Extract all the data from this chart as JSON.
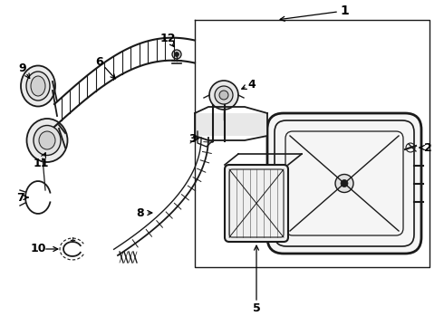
{
  "bg_color": "#ffffff",
  "lc": "#1a1a1a",
  "label_color": "#000000",
  "figsize": [
    4.9,
    3.6
  ],
  "dpi": 100
}
